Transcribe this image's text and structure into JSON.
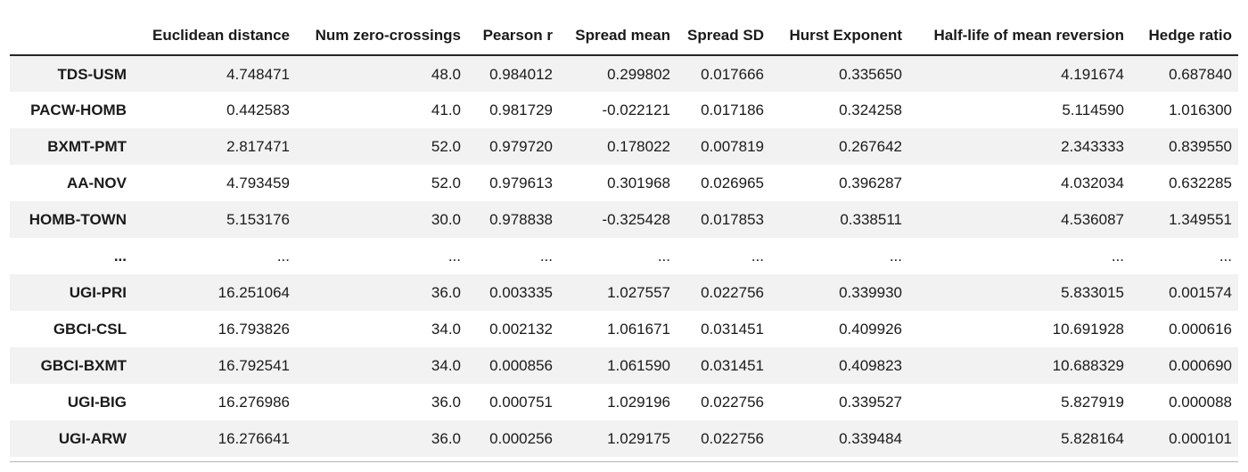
{
  "colors": {
    "background": "#ffffff",
    "row_stripe": "#f2f2f2",
    "text": "#1a1a1a",
    "header_rule": "#262626",
    "bottom_rule": "#b5b5b5"
  },
  "chart_data": {
    "type": "table",
    "title": "",
    "index_header": "",
    "columns": [
      "Euclidean distance",
      "Num zero-crossings",
      "Pearson r",
      "Spread mean",
      "Spread SD",
      "Hurst Exponent",
      "Half-life of mean reversion",
      "Hedge ratio"
    ],
    "rows": [
      {
        "index": "TDS-USM",
        "values": [
          "4.748471",
          "48.0",
          "0.984012",
          "0.299802",
          "0.017666",
          "0.335650",
          "4.191674",
          "0.687840"
        ]
      },
      {
        "index": "PACW-HOMB",
        "values": [
          "0.442583",
          "41.0",
          "0.981729",
          "-0.022121",
          "0.017186",
          "0.324258",
          "5.114590",
          "1.016300"
        ]
      },
      {
        "index": "BXMT-PMT",
        "values": [
          "2.817471",
          "52.0",
          "0.979720",
          "0.178022",
          "0.007819",
          "0.267642",
          "2.343333",
          "0.839550"
        ]
      },
      {
        "index": "AA-NOV",
        "values": [
          "4.793459",
          "52.0",
          "0.979613",
          "0.301968",
          "0.026965",
          "0.396287",
          "4.032034",
          "0.632285"
        ]
      },
      {
        "index": "HOMB-TOWN",
        "values": [
          "5.153176",
          "30.0",
          "0.978838",
          "-0.325428",
          "0.017853",
          "0.338511",
          "4.536087",
          "1.349551"
        ]
      },
      {
        "index": "...",
        "values": [
          "...",
          "...",
          "...",
          "...",
          "...",
          "...",
          "...",
          "..."
        ]
      },
      {
        "index": "UGI-PRI",
        "values": [
          "16.251064",
          "36.0",
          "0.003335",
          "1.027557",
          "0.022756",
          "0.339930",
          "5.833015",
          "0.001574"
        ]
      },
      {
        "index": "GBCI-CSL",
        "values": [
          "16.793826",
          "34.0",
          "0.002132",
          "1.061671",
          "0.031451",
          "0.409926",
          "10.691928",
          "0.000616"
        ]
      },
      {
        "index": "GBCI-BXMT",
        "values": [
          "16.792541",
          "34.0",
          "0.000856",
          "1.061590",
          "0.031451",
          "0.409823",
          "10.688329",
          "0.000690"
        ]
      },
      {
        "index": "UGI-BIG",
        "values": [
          "16.276986",
          "36.0",
          "0.000751",
          "1.029196",
          "0.022756",
          "0.339527",
          "5.827919",
          "0.000088"
        ]
      },
      {
        "index": "UGI-ARW",
        "values": [
          "16.276641",
          "36.0",
          "0.000256",
          "1.029175",
          "0.022756",
          "0.339484",
          "5.828164",
          "0.000101"
        ]
      }
    ]
  }
}
